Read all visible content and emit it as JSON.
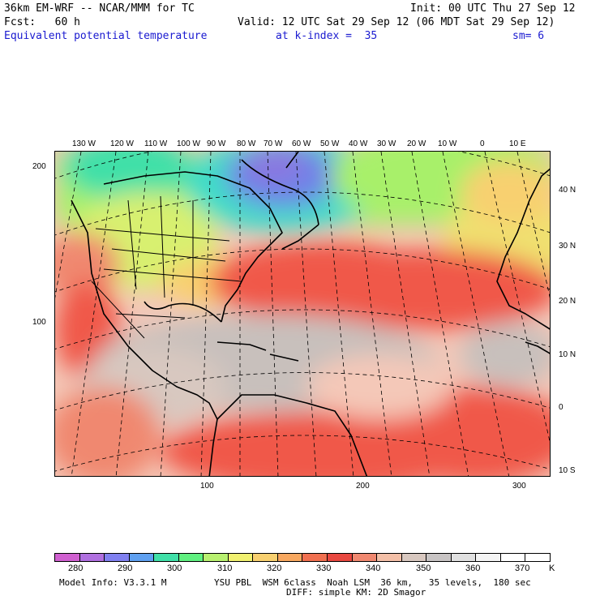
{
  "header": {
    "line1_left": "36km EM-WRF -- NCAR/MMM for TC",
    "line1_right": "Init: 00 UTC Thu 27 Sep 12",
    "line2_left": "Fcst:   60 h",
    "line2_right": "Valid: 12 UTC Sat 29 Sep 12 (06 MDT Sat 29 Sep 12)",
    "field_name": "Equivalent potential temperature",
    "level": "at k-index =  35",
    "smoothing": "sm= 6"
  },
  "map": {
    "top_longitude_labels": [
      "130 W",
      "120 W",
      "110 W",
      "100 W",
      "90 W",
      "80 W",
      "70 W",
      "60 W",
      "50 W",
      "40 W",
      "30 W",
      "20 W",
      "10 W",
      "0",
      "10 E"
    ],
    "right_latitude_labels": [
      "40 N",
      "30 N",
      "20 N",
      "10 N",
      "0",
      "10 S"
    ],
    "left_grid_labels": [
      "200",
      "100"
    ],
    "bottom_grid_labels": [
      "100",
      "200",
      "300"
    ],
    "background_colors": {
      "cold": "#6e84e8",
      "cool": "#3ddcc8",
      "mild": "#a8f06a",
      "warm": "#f0e070",
      "hot": "#f5a070",
      "red": "#f0584a",
      "pink": "#f4c8b8",
      "grey": "#c8c0bc"
    }
  },
  "colorbar": {
    "labels": [
      "280",
      "290",
      "300",
      "310",
      "320",
      "330",
      "340",
      "350",
      "360",
      "370",
      "K"
    ],
    "swatches": [
      "#d060d0",
      "#b070e0",
      "#8080f0",
      "#5fa0f0",
      "#40e0a8",
      "#60f080",
      "#b8f070",
      "#f0f070",
      "#f8d070",
      "#f8a860",
      "#f07050",
      "#e84840",
      "#f08870",
      "#f4c0a8",
      "#d8c8c0",
      "#c8c4c4",
      "#e0e0e0",
      "#f4f4f4",
      "#ffffff",
      "#ffffff"
    ]
  },
  "footer": {
    "model_info": "Model Info: V3.3.1 M",
    "physics": "YSU PBL  WSM 6class  Noah LSM  36 km,   35 levels,  180 sec",
    "diffusion": "DIFF: simple KM: 2D Smagor"
  }
}
